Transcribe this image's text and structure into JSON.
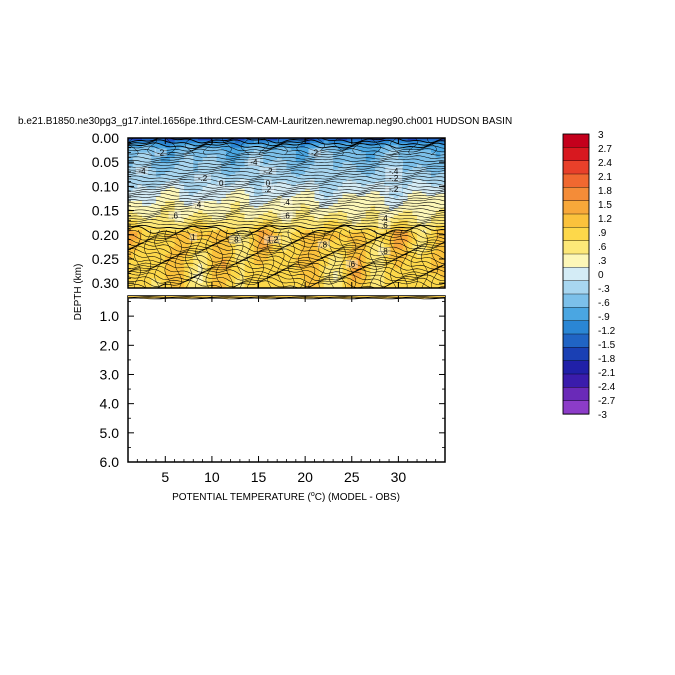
{
  "chart_data": {
    "type": "heatmap",
    "title": "b.e21.B1850.ne30pg3_g17.intel.1656pe.1thrd.CESM-CAM-Lauritzen.newremap.neg90.ch001 HUDSON BASIN",
    "xlabel_prefix": "POTENTIAL TEMPERATURE (",
    "xlabel_unit": "o",
    "xlabel_suffix": "C) (MODEL - OBS)",
    "ylabel": "DEPTH (km)",
    "x_range": [
      1,
      35
    ],
    "x_ticks": [
      "5",
      "10",
      "15",
      "20",
      "25",
      "30"
    ],
    "x_tick_values": [
      5,
      10,
      15,
      20,
      25,
      30
    ],
    "upper_panel": {
      "depth_range": [
        0.0,
        0.31
      ],
      "y_ticks": [
        "0.00",
        "0.05",
        "0.10",
        "0.15",
        "0.20",
        "0.25",
        "0.30"
      ],
      "y_tick_values": [
        0.0,
        0.05,
        0.1,
        0.15,
        0.2,
        0.25,
        0.3
      ]
    },
    "lower_panel": {
      "depth_range": [
        0.31,
        6.0
      ],
      "y_ticks": [
        "1.0",
        "2.0",
        "3.0",
        "4.0",
        "5.0",
        "6.0"
      ],
      "y_tick_values": [
        1.0,
        2.0,
        3.0,
        4.0,
        5.0,
        6.0
      ]
    },
    "colorbar": {
      "levels": [
        "3",
        "2.7",
        "2.4",
        "2.1",
        "1.8",
        "1.5",
        "1.2",
        ".9",
        ".6",
        ".3",
        "0",
        "-.3",
        "-.6",
        "-.9",
        "-1.2",
        "-1.5",
        "-1.8",
        "-2.1",
        "-2.4",
        "-2.7",
        "-3"
      ],
      "colors": [
        "#c4001c",
        "#d8181f",
        "#e8402a",
        "#f06830",
        "#f48c38",
        "#f8a83a",
        "#fbc23c",
        "#fdd84a",
        "#fde878",
        "#fdf7b8",
        "#d4ecf6",
        "#a8d6f0",
        "#7cc0ea",
        "#4aa6e2",
        "#2a86d4",
        "#2064c4",
        "#1a40b4",
        "#2020a8",
        "#3a1cac",
        "#6a2ab8",
        "#8c3cc8"
      ]
    },
    "depth_profile": [
      {
        "depth": 0.0,
        "value": -1.8
      },
      {
        "depth": 0.01,
        "value": -1.0
      },
      {
        "depth": 0.03,
        "value": -0.6
      },
      {
        "depth": 0.06,
        "value": -0.45
      },
      {
        "depth": 0.09,
        "value": -0.25
      },
      {
        "depth": 0.11,
        "value": 0.0
      },
      {
        "depth": 0.13,
        "value": 0.2
      },
      {
        "depth": 0.15,
        "value": 0.35
      },
      {
        "depth": 0.17,
        "value": 0.55
      },
      {
        "depth": 0.185,
        "value": 0.75
      },
      {
        "depth": 0.2,
        "value": 1.1
      },
      {
        "depth": 0.22,
        "value": 1.0
      },
      {
        "depth": 0.25,
        "value": 0.95
      },
      {
        "depth": 0.3,
        "value": 0.9
      }
    ],
    "contour_labels": [
      {
        "text": "-2",
        "x": 4.5,
        "depth": 0.03
      },
      {
        "text": "-4",
        "x": 2.5,
        "depth": 0.068
      },
      {
        "text": "-.2",
        "x": 9.0,
        "depth": 0.083
      },
      {
        "text": "-2",
        "x": 21.0,
        "depth": 0.03
      },
      {
        "text": "-4",
        "x": 14.5,
        "depth": 0.05
      },
      {
        "text": "-.4",
        "x": 29.5,
        "depth": 0.068
      },
      {
        "text": "-.2",
        "x": 29.5,
        "depth": 0.083
      },
      {
        "text": "-.2",
        "x": 16.0,
        "depth": 0.068
      },
      {
        "text": "0",
        "x": 11.0,
        "depth": 0.093
      },
      {
        "text": "0",
        "x": 16.0,
        "depth": 0.093
      },
      {
        "text": ".2",
        "x": 16.0,
        "depth": 0.105
      },
      {
        "text": "-.2",
        "x": 29.5,
        "depth": 0.105
      },
      {
        "text": ".4",
        "x": 8.5,
        "depth": 0.137
      },
      {
        "text": ".4",
        "x": 18.0,
        "depth": 0.132
      },
      {
        "text": ".6",
        "x": 6.0,
        "depth": 0.16
      },
      {
        "text": ".6",
        "x": 18.0,
        "depth": 0.16
      },
      {
        "text": ".4",
        "x": 28.5,
        "depth": 0.165
      },
      {
        "text": ".6",
        "x": 28.5,
        "depth": 0.18
      },
      {
        "text": "1",
        "x": 8.0,
        "depth": 0.205
      },
      {
        "text": ".8",
        "x": 12.5,
        "depth": 0.21
      },
      {
        "text": "1.2",
        "x": 16.5,
        "depth": 0.21
      },
      {
        "text": ".8",
        "x": 22.0,
        "depth": 0.22
      },
      {
        "text": ".8",
        "x": 28.5,
        "depth": 0.234
      },
      {
        "text": ".6",
        "x": 25.0,
        "depth": 0.26
      }
    ]
  }
}
